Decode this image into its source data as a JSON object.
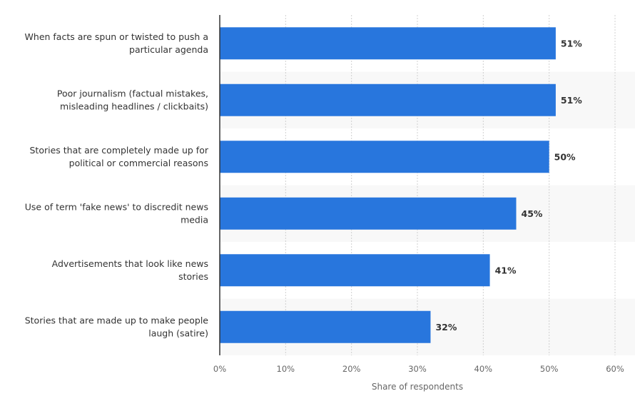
{
  "chart_data": {
    "type": "bar",
    "orientation": "horizontal",
    "categories": [
      [
        "When facts are spun or twisted to push a",
        "particular agenda"
      ],
      [
        "Poor journalism (factual mistakes,",
        "misleading headlines / clickbaits)"
      ],
      [
        "Stories that are completely made up for",
        "political or commercial reasons"
      ],
      [
        "Use of term 'fake news' to discredit news",
        "media"
      ],
      [
        "Advertisements that look like news",
        "stories"
      ],
      [
        "Stories that are made up to make people",
        "laugh (satire)"
      ]
    ],
    "values": [
      51,
      51,
      50,
      45,
      41,
      32
    ],
    "data_labels": [
      "51%",
      "51%",
      "50%",
      "45%",
      "41%",
      "32%"
    ],
    "xlabel": "Share of respondents",
    "ylabel": "",
    "xlim": [
      0,
      60
    ],
    "ticks": [
      "0%",
      "10%",
      "20%",
      "30%",
      "40%",
      "50%",
      "60%"
    ],
    "grid": true,
    "bar_color": "#2876dd",
    "band_color": "#f8f8f8"
  }
}
